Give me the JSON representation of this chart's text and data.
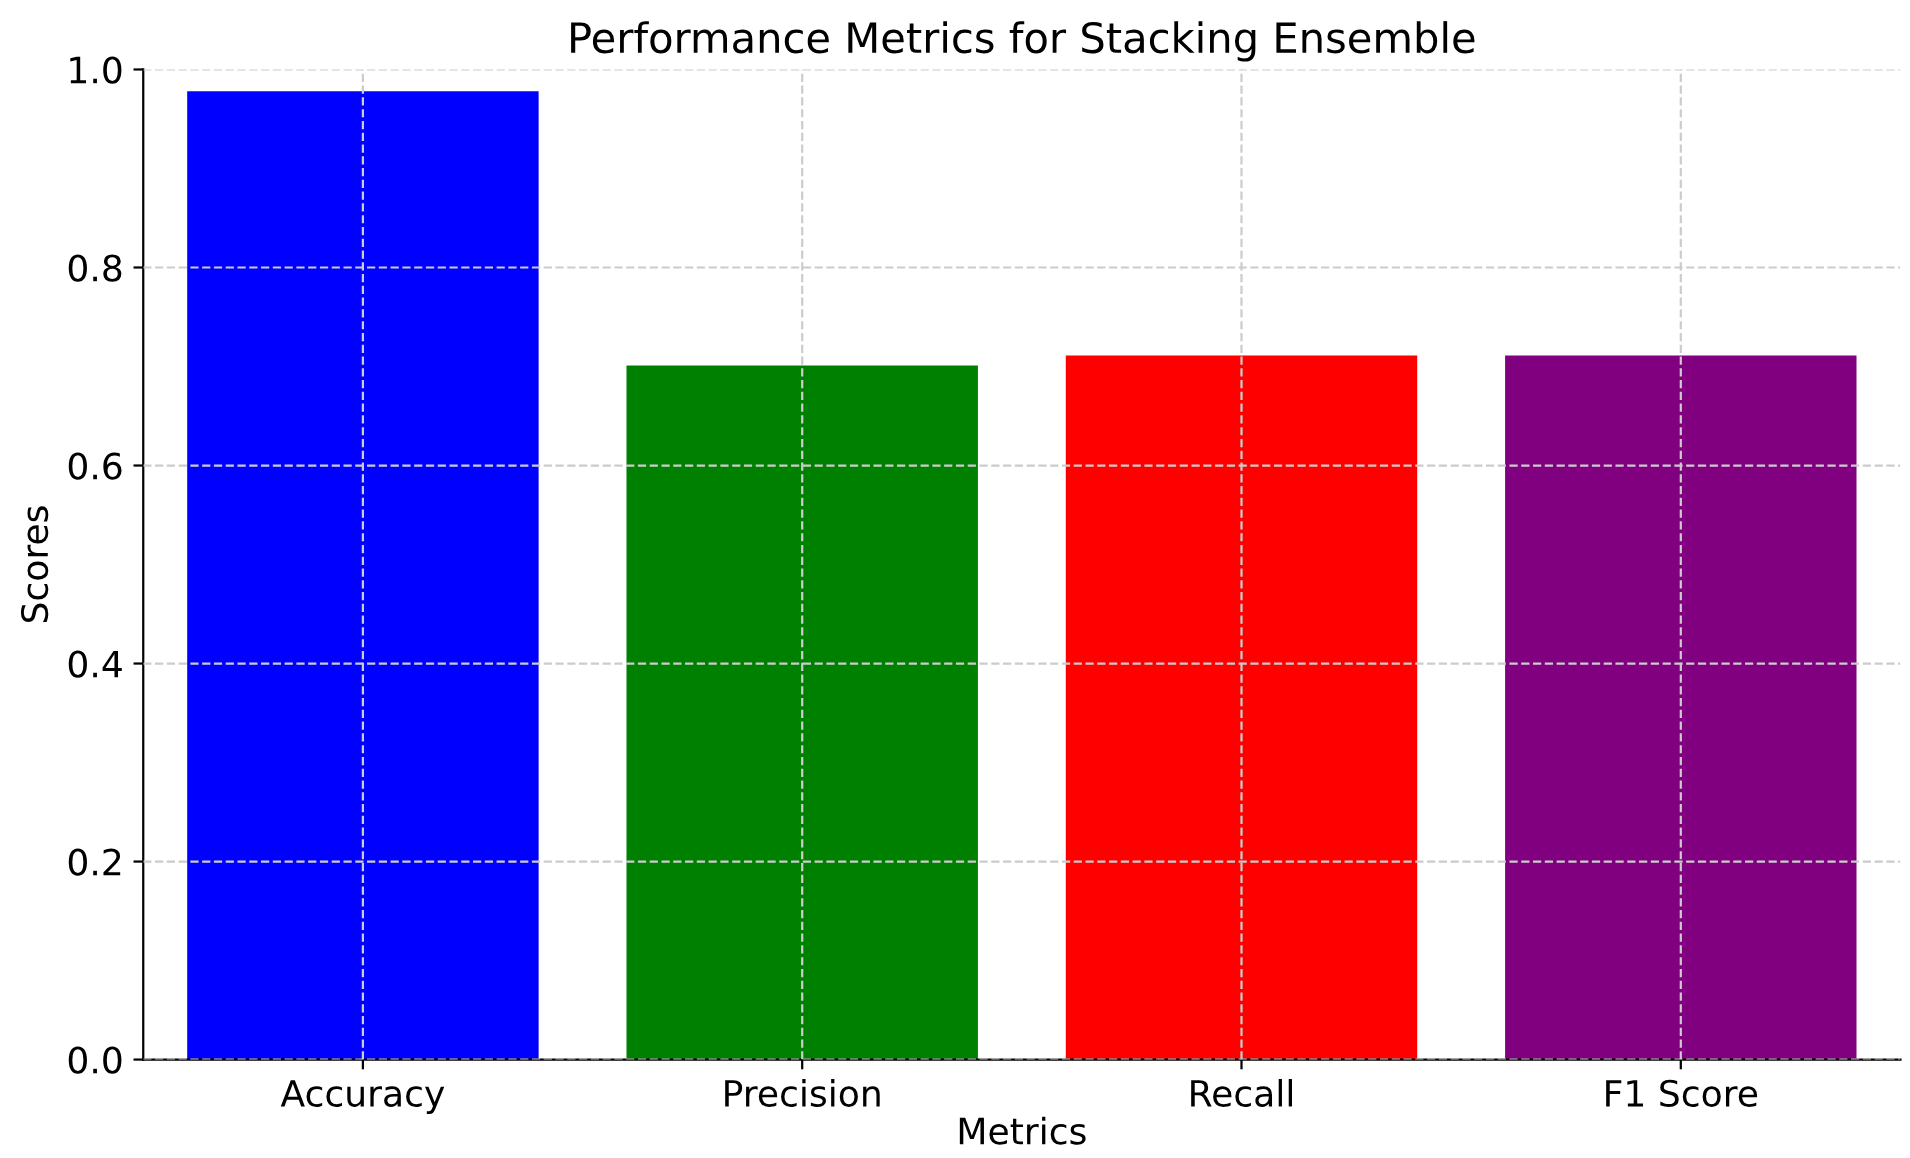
{
  "chart_data": {
    "type": "bar",
    "title": "Performance Metrics for Stacking Ensemble",
    "xlabel": "Metrics",
    "ylabel": "Scores",
    "categories": [
      "Accuracy",
      "Precision",
      "Recall",
      "F1 Score"
    ],
    "values": [
      0.978,
      0.701,
      0.711,
      0.711
    ],
    "colors": [
      "#0000ff",
      "#008000",
      "#ff0000",
      "#800080"
    ],
    "ylim": [
      0,
      1.0
    ],
    "yticks": [
      {
        "value": 0,
        "label": "0.0"
      },
      0.2,
      0.4,
      0.6,
      0.8,
      {
        "value": 1.0,
        "label": "1.0"
      }
    ],
    "grid": true
  }
}
